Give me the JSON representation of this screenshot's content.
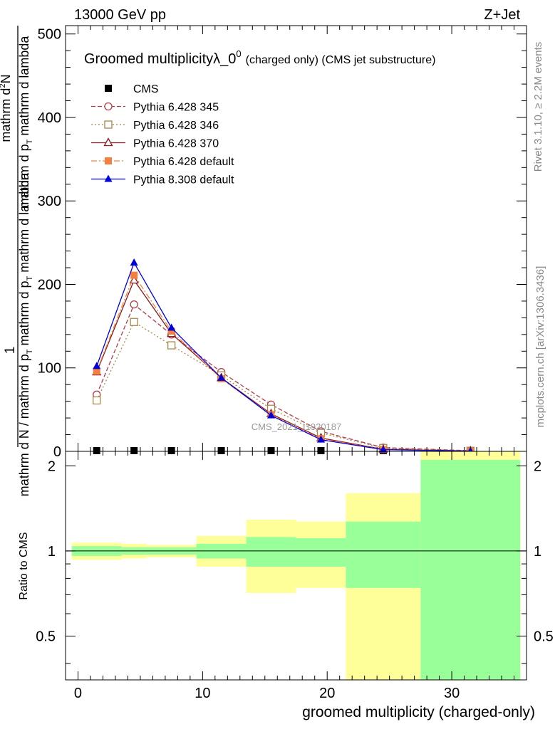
{
  "header": {
    "left": "13000 GeV pp",
    "right": "Z+Jet"
  },
  "side_labels": {
    "rivet": "Rivet 3.1.10, ≥ 2.2M events",
    "mcplots": "mcplots.cern.ch [arXiv:1306.3436]"
  },
  "watermark": "CMS_2021_I1920187",
  "colors": {
    "cms": "#000000",
    "p345": "#b03a48",
    "p346": "#a8884a",
    "p370": "#8b1a1a",
    "p6def": "#f5803e",
    "p8def": "#0000dd",
    "band_stat": "#99ff99",
    "band_tot": "#ffff99"
  },
  "chart_data": [
    {
      "panel": "main",
      "type": "line",
      "title_main": "Groomed multiplicityλ_0",
      "title_sup": "0",
      "title_suffix": "(charged only) (CMS jet substructure)",
      "ylabel": {
        "numerator": "mathrm d",
        "numerator_sup": "2",
        "numerator_tail": "N",
        "line1": "mathrm d p",
        "line1_sub": "T",
        "line1_tail": " mathrm d lambda",
        "denominator": "mathrm d N / mathrm d p",
        "denominator_sub": "T",
        "denominator_tail": " mathrm d p",
        "denominator_tail_sub": "T",
        "denominator_end": " mathrm d lambda",
        "one": "1"
      },
      "xlim": [
        -1,
        36
      ],
      "ylim": [
        0,
        510
      ],
      "yticks": [
        0,
        100,
        200,
        300,
        400,
        500
      ],
      "series": [
        {
          "name": "CMS",
          "key": "cms",
          "marker": "square-filled",
          "dash": "none",
          "x": [
            1.5,
            4.5,
            7.5,
            11.5,
            15.5,
            19.5,
            24.5,
            31.5
          ],
          "y": [
            0.8,
            0.8,
            0.8,
            0.8,
            0.8,
            0.8,
            0.8,
            0.8
          ]
        },
        {
          "name": "Pythia 6.428 345",
          "key": "p345",
          "marker": "circle-open",
          "dash": "6,3",
          "x": [
            1.5,
            4.5,
            7.5,
            11.5,
            15.5,
            19.5,
            24.5,
            31.5
          ],
          "y": [
            68,
            176,
            140,
            95,
            56,
            24,
            4.5,
            0.8
          ]
        },
        {
          "name": "Pythia 6.428 346",
          "key": "p346",
          "marker": "square-open",
          "dash": "2,3",
          "x": [
            1.5,
            4.5,
            7.5,
            11.5,
            15.5,
            19.5,
            24.5,
            31.5
          ],
          "y": [
            61,
            155,
            127,
            91,
            51,
            22,
            4,
            0.7
          ]
        },
        {
          "name": "Pythia 6.428 370",
          "key": "p370",
          "marker": "triangle-open",
          "dash": "none",
          "x": [
            1.5,
            4.5,
            7.5,
            11.5,
            15.5,
            19.5,
            24.5,
            31.5
          ],
          "y": [
            95,
            205,
            141,
            88,
            45,
            16,
            2.5,
            0.5
          ]
        },
        {
          "name": "Pythia 6.428 default",
          "key": "p6def",
          "marker": "square-filled",
          "dash": "8,3,2,3",
          "x": [
            1.5,
            4.5,
            7.5,
            11.5,
            15.5,
            19.5,
            24.5,
            31.5
          ],
          "y": [
            96,
            211,
            144,
            87,
            44,
            15,
            2.2,
            0.4
          ]
        },
        {
          "name": "Pythia 8.308 default",
          "key": "p8def",
          "marker": "triangle-filled",
          "dash": "none",
          "x": [
            1.5,
            4.5,
            7.5,
            11.5,
            15.5,
            19.5,
            24.5,
            31.5
          ],
          "y": [
            102,
            226,
            148,
            88,
            43,
            14,
            2,
            0.3
          ]
        }
      ]
    },
    {
      "panel": "ratio",
      "type": "area",
      "ylabel": "Ratio to CMS",
      "xlabel": "groomed multiplicity (charged-only)",
      "xlim": [
        -1,
        36
      ],
      "ylim": [
        0.35,
        2.25
      ],
      "yticks": [
        0.5,
        1,
        2
      ],
      "xticks": [
        0,
        10,
        20,
        30
      ],
      "bins": [
        {
          "lo": -0.5,
          "hi": 3.5,
          "stat": [
            0.96,
            1.04
          ],
          "total": [
            0.93,
            1.07
          ]
        },
        {
          "lo": 3.5,
          "hi": 5.5,
          "stat": [
            0.97,
            1.03
          ],
          "total": [
            0.94,
            1.06
          ]
        },
        {
          "lo": 5.5,
          "hi": 9.5,
          "stat": [
            0.97,
            1.03
          ],
          "total": [
            0.95,
            1.05
          ]
        },
        {
          "lo": 9.5,
          "hi": 13.5,
          "stat": [
            0.94,
            1.06
          ],
          "total": [
            0.88,
            1.13
          ]
        },
        {
          "lo": 13.5,
          "hi": 17.5,
          "stat": [
            0.88,
            1.12
          ],
          "total": [
            0.71,
            1.29
          ]
        },
        {
          "lo": 17.5,
          "hi": 21.5,
          "stat": [
            0.88,
            1.11
          ],
          "total": [
            0.74,
            1.27
          ]
        },
        {
          "lo": 21.5,
          "hi": 27.5,
          "stat": [
            0.74,
            1.27
          ],
          "total": [
            0.35,
            1.6
          ]
        },
        {
          "lo": 27.5,
          "hi": 35.5,
          "stat": [
            0.35,
            2.1
          ],
          "total": [
            0.35,
            2.25
          ]
        }
      ]
    }
  ]
}
